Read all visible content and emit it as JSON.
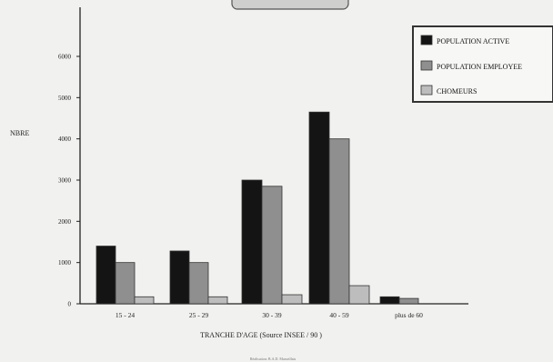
{
  "chart_data": {
    "type": "bar",
    "title": "",
    "xlabel": "TRANCHE D'AGE (Source INSEE / 90 )",
    "ylabel": "NBRE",
    "ylim": [
      0,
      6000
    ],
    "y_ticks": [
      "0",
      "1000",
      "2000",
      "3000",
      "4000",
      "5000",
      "6000"
    ],
    "categories": [
      "15 - 24",
      "25 - 29",
      "30 - 39",
      "40 - 59",
      "plus de 60"
    ],
    "series": [
      {
        "name": "POPULATION ACTIVE",
        "color": "#141414",
        "values": [
          1400,
          1280,
          3000,
          4650,
          170
        ]
      },
      {
        "name": "POPULATION EMPLOYEE",
        "color": "#8f8f8f",
        "values": [
          1000,
          1000,
          2850,
          4000,
          130
        ]
      },
      {
        "name": "CHOMEURS",
        "color": "#bdbdbd",
        "values": [
          170,
          170,
          220,
          440,
          0
        ]
      }
    ],
    "legend_position": "top-right",
    "grid": false,
    "footer": "Réalisation: B.A.D. Marseillais"
  }
}
